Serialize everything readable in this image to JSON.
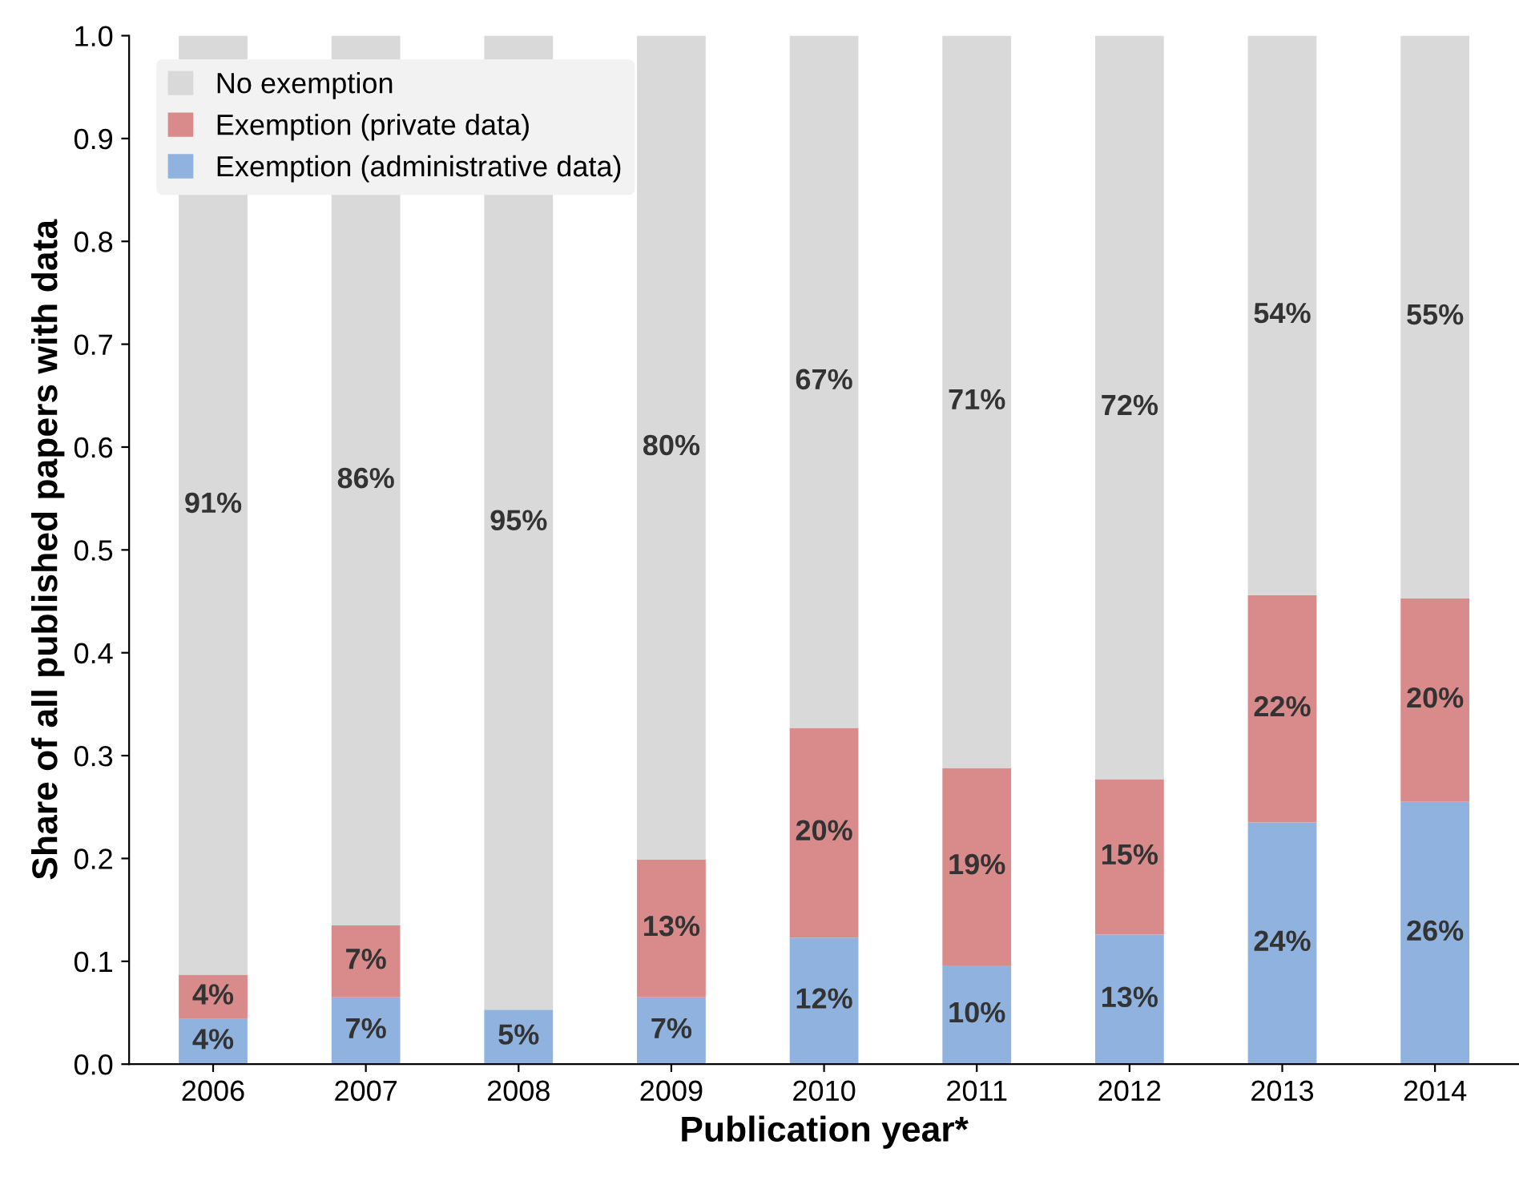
{
  "chart_data": {
    "type": "bar",
    "stacked": true,
    "xlabel": "Publication year*",
    "ylabel": "Share of all published papers with data",
    "categories": [
      "2006",
      "2007",
      "2008",
      "2009",
      "2010",
      "2011",
      "2012",
      "2013",
      "2014"
    ],
    "series": [
      {
        "name": "Exemption (administrative data)",
        "color": "#8fb3de",
        "values": [
          0.044,
          0.065,
          0.053,
          0.065,
          0.123,
          0.096,
          0.126,
          0.235,
          0.255
        ],
        "value_labels": [
          "4%",
          "7%",
          "5%",
          "7%",
          "12%",
          "10%",
          "13%",
          "24%",
          "26%"
        ]
      },
      {
        "name": "Exemption (private data)",
        "color": "#d98b8b",
        "values": [
          0.043,
          0.07,
          0,
          0.134,
          0.204,
          0.192,
          0.151,
          0.221,
          0.198
        ],
        "value_labels": [
          "4%",
          "7%",
          null,
          "13%",
          "20%",
          "19%",
          "15%",
          "22%",
          "20%"
        ]
      },
      {
        "name": "No exemption",
        "color": "#d9d9d9",
        "values": [
          0.913,
          0.865,
          0.947,
          0.801,
          0.673,
          0.712,
          0.723,
          0.544,
          0.547
        ],
        "value_labels": [
          "91%",
          "86%",
          "95%",
          "80%",
          "67%",
          "71%",
          "72%",
          "54%",
          "55%"
        ]
      }
    ],
    "ylim": [
      0,
      1.0
    ],
    "yticks": [
      {
        "value": 0,
        "label": "0.0"
      },
      0.1,
      0.2,
      0.3,
      0.4,
      0.5,
      0.6,
      0.7,
      0.8,
      0.9,
      {
        "value": 1,
        "label": "1.0"
      }
    ],
    "grid": false,
    "legend": "top left"
  }
}
